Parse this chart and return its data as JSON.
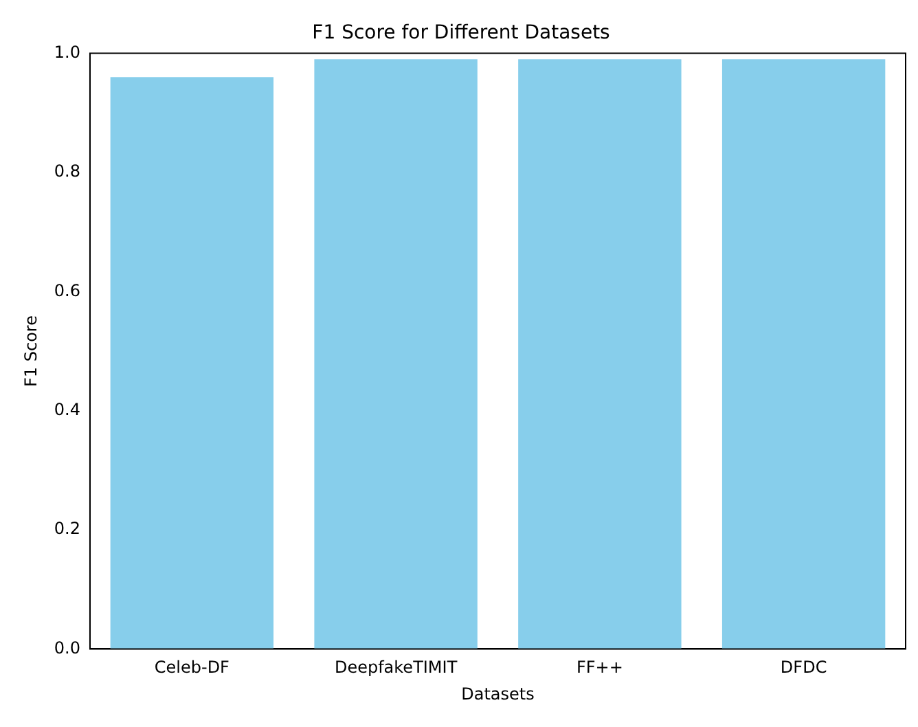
{
  "chart_data": {
    "type": "bar",
    "title": "F1 Score for Different Datasets",
    "xlabel": "Datasets",
    "ylabel": "F1 Score",
    "categories": [
      "Celeb-DF",
      "DeepfakeTIMIT",
      "FF++",
      "DFDC"
    ],
    "values": [
      0.96,
      0.99,
      0.99,
      0.99
    ],
    "color": "#87ceeb",
    "ylim": [
      0,
      1
    ],
    "yticks": [
      {
        "value": 0,
        "label": "0.0"
      },
      {
        "value": 0.2,
        "label": "0.2"
      },
      {
        "value": 0.4,
        "label": "0.4"
      },
      {
        "value": 0.6,
        "label": "0.6"
      },
      {
        "value": 0.8,
        "label": "0.8"
      },
      {
        "value": 1,
        "label": "1.0"
      }
    ],
    "grid": false,
    "legend": false
  }
}
